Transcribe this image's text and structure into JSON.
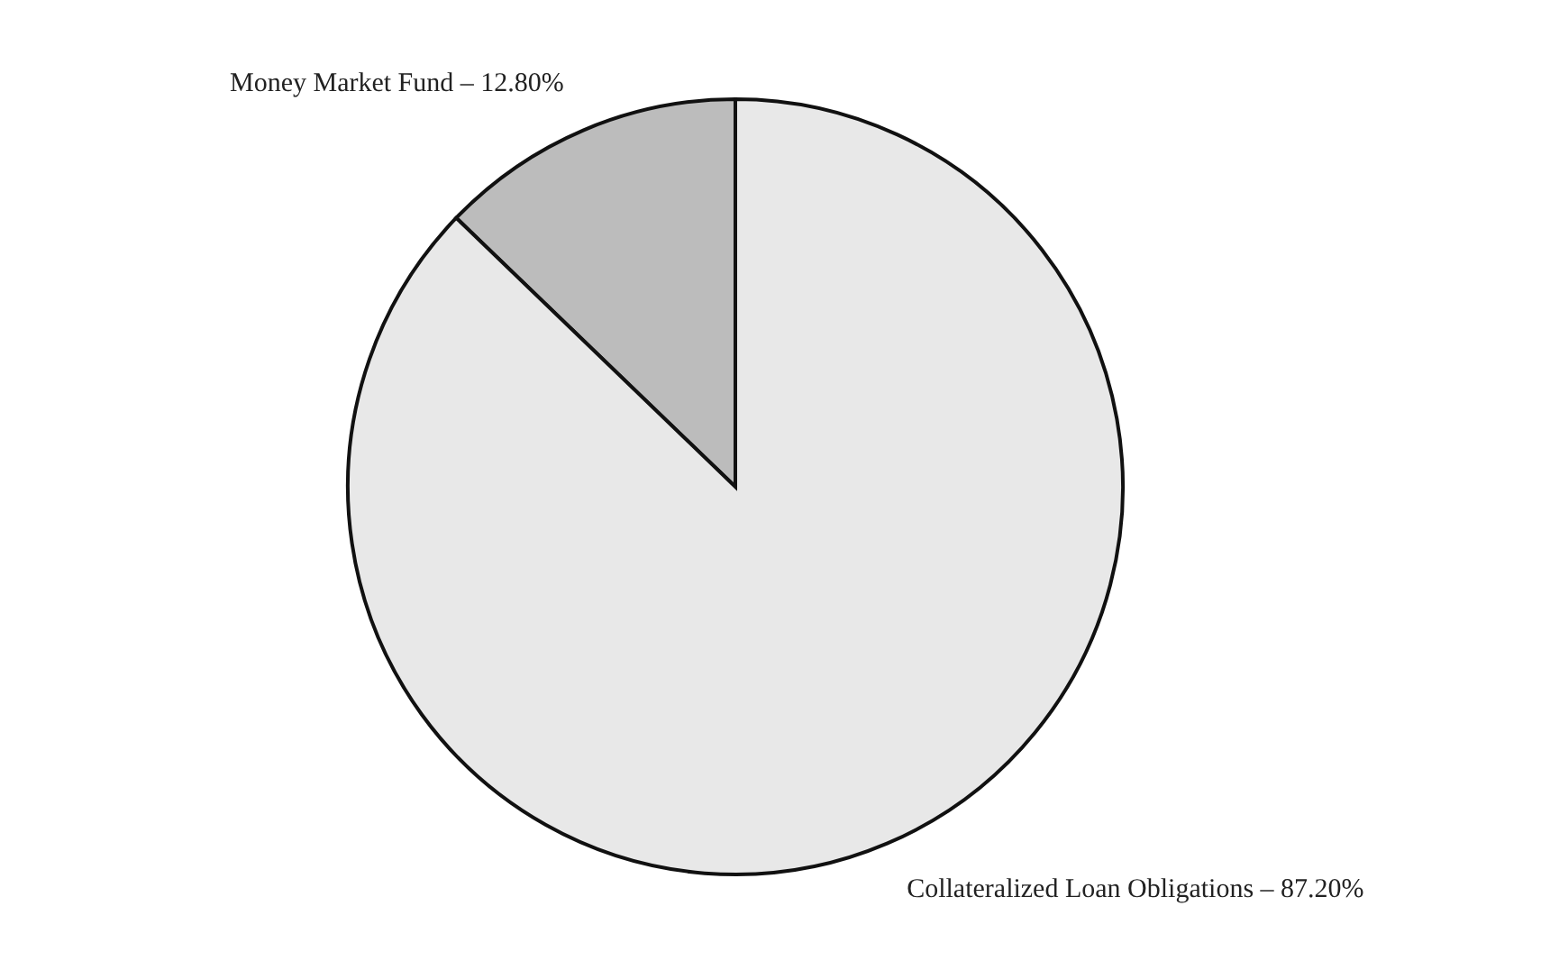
{
  "chart_data": {
    "type": "pie",
    "categories": [
      "Money Market Fund",
      "Collateralized Loan Obligations"
    ],
    "values": [
      12.8,
      87.2
    ],
    "value_labels": [
      "12.80%",
      "87.20%"
    ],
    "colors": [
      "#bcbcbc",
      "#e8e8e8"
    ]
  }
}
